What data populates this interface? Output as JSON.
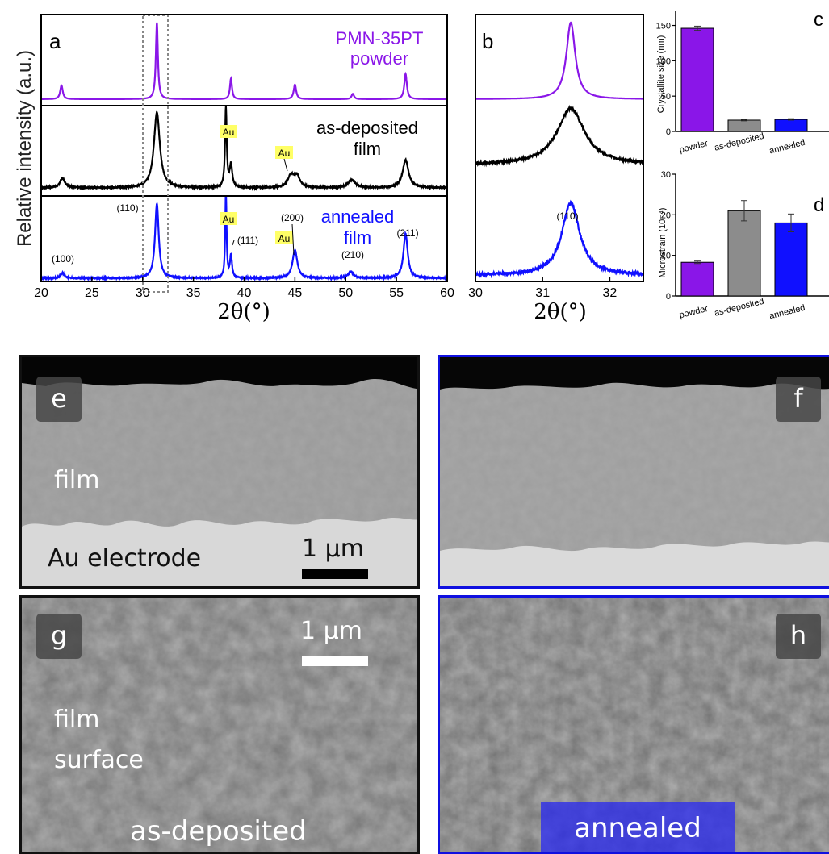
{
  "chart_data": [
    {
      "panel": "a",
      "type": "line",
      "xlabel": "2θ(°)",
      "ylabel": "Relative intensity (a.u.)",
      "xlim": [
        20,
        60
      ],
      "xticks": [
        "20",
        "25",
        "30",
        "35",
        "40",
        "45",
        "50",
        "55",
        "60"
      ],
      "highlight_range": [
        30,
        32.5
      ],
      "series": [
        {
          "name": "PMN-35PT powder",
          "color": "#8a16e8",
          "peaks": [
            {
              "x": 22.0,
              "y": 0.18,
              "w": 0.15
            },
            {
              "x": 31.4,
              "y": 1.0,
              "w": 0.12
            },
            {
              "x": 38.7,
              "y": 0.27,
              "w": 0.12
            },
            {
              "x": 45.0,
              "y": 0.19,
              "w": 0.15
            },
            {
              "x": 50.7,
              "y": 0.07,
              "w": 0.15
            },
            {
              "x": 55.9,
              "y": 0.33,
              "w": 0.15
            }
          ]
        },
        {
          "name": "as-deposited film",
          "color": "#000000",
          "peaks": [
            {
              "x": 22.1,
              "y": 0.12,
              "w": 0.3
            },
            {
              "x": 31.4,
              "y": 0.95,
              "w": 0.35
            },
            {
              "x": 38.2,
              "y": 1.0,
              "w": 0.1
            },
            {
              "x": 38.7,
              "y": 0.28,
              "w": 0.15
            },
            {
              "x": 44.6,
              "y": 0.15,
              "w": 0.35
            },
            {
              "x": 45.2,
              "y": 0.14,
              "w": 0.35
            },
            {
              "x": 50.6,
              "y": 0.1,
              "w": 0.4
            },
            {
              "x": 55.9,
              "y": 0.35,
              "w": 0.35
            }
          ]
        },
        {
          "name": "annealed film",
          "color": "#1010ff",
          "peaks": [
            {
              "x": 22.1,
              "y": 0.07,
              "w": 0.22
            },
            {
              "x": 31.4,
              "y": 1.0,
              "w": 0.22
            },
            {
              "x": 38.2,
              "y": 1.15,
              "w": 0.08
            },
            {
              "x": 38.7,
              "y": 0.3,
              "w": 0.12
            },
            {
              "x": 45.0,
              "y": 0.38,
              "w": 0.28
            },
            {
              "x": 50.5,
              "y": 0.09,
              "w": 0.3
            },
            {
              "x": 55.9,
              "y": 0.6,
              "w": 0.25
            }
          ]
        }
      ],
      "labels": [
        {
          "text": "a",
          "panel_letter": true
        },
        {
          "text": "PMN-35PT",
          "series": 0
        },
        {
          "text": "powder",
          "series": 0
        },
        {
          "text": "as-deposited",
          "series": 1
        },
        {
          "text": "film",
          "series": 1
        },
        {
          "text": "annealed",
          "series": 2
        },
        {
          "text": "film",
          "series": 2
        }
      ],
      "annotations": {
        "au": [
          "Au",
          "Au",
          "Au",
          "Au"
        ],
        "hkl": [
          "(100)",
          "(110)",
          "(111)",
          "(200)",
          "(210)",
          "(211)"
        ]
      }
    },
    {
      "panel": "b",
      "type": "line",
      "xlabel": "2θ(°)",
      "xlim": [
        30,
        32.5
      ],
      "xticks": [
        "30",
        "31",
        "32"
      ],
      "series": [
        {
          "color": "#8a16e8",
          "center": 31.42,
          "w": 0.08
        },
        {
          "color": "#000000",
          "center": 31.42,
          "w": 0.25
        },
        {
          "color": "#1010ff",
          "center": 31.42,
          "w": 0.16
        }
      ],
      "annotation": "(110)",
      "panel_letter": "b"
    },
    {
      "panel": "c",
      "type": "bar",
      "categories": [
        "powder",
        "as-deposited",
        "annealed"
      ],
      "values": [
        146,
        16,
        17
      ],
      "errors": [
        3,
        1,
        1
      ],
      "colors": [
        "#8a16e8",
        "#8c8c8c",
        "#1010ff"
      ],
      "ylabel": "Crystallite size (nm)",
      "ylim": [
        0,
        170
      ],
      "yticks": [
        "0",
        "50",
        "100",
        "150"
      ],
      "panel_letter": "c"
    },
    {
      "panel": "d",
      "type": "bar",
      "categories": [
        "powder",
        "as-deposited",
        "annealed"
      ],
      "values": [
        8.3,
        21.0,
        18.0
      ],
      "errors": [
        0.3,
        2.5,
        2.2
      ],
      "colors": [
        "#8a16e8",
        "#8c8c8c",
        "#1010ff"
      ],
      "ylabel": "Microstrain (10⁻⁴)",
      "ylim": [
        0,
        30
      ],
      "yticks": [
        "0",
        "10",
        "20",
        "30"
      ],
      "panel_letter": "d"
    }
  ],
  "images": {
    "e": {
      "letter": "e",
      "film_label": "film",
      "electrode_label": "Au electrode",
      "scale_label": "1 µm"
    },
    "f": {
      "letter": "f"
    },
    "g": {
      "letter": "g",
      "surface_label_1": "film",
      "surface_label_2": "surface",
      "scale_label": "1 µm",
      "caption": "as-deposited"
    },
    "h": {
      "letter": "h",
      "caption": "annealed"
    }
  },
  "colors": {
    "powder": "#8a16e8",
    "as_deposited": "#000000",
    "annealed": "#1010ff",
    "au_highlight": "#ffff66"
  }
}
